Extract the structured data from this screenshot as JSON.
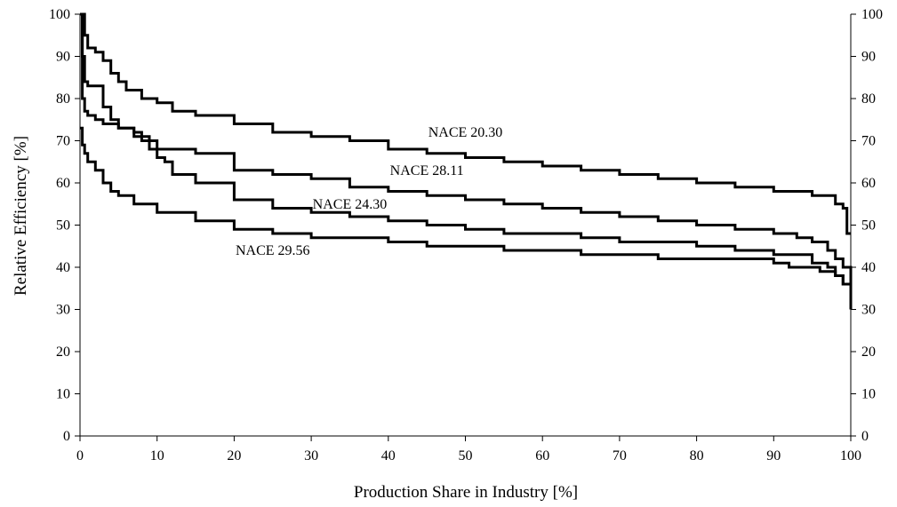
{
  "chart_data": {
    "type": "line",
    "title": "",
    "xlabel": "Production Share in Industry [%]",
    "ylabel": "Relative Efficiency [%]",
    "xlim": [
      0,
      100
    ],
    "ylim": [
      0,
      100
    ],
    "x_ticks": [
      0,
      10,
      20,
      30,
      40,
      50,
      60,
      70,
      80,
      90,
      100
    ],
    "y_ticks": [
      0,
      10,
      20,
      30,
      40,
      50,
      60,
      70,
      80,
      90,
      100
    ],
    "grid": false,
    "legend": "none",
    "series": [
      {
        "name": "NACE 20.30",
        "x": [
          0,
          0.3,
          0.6,
          1,
          2,
          3,
          4,
          5,
          6,
          8,
          10,
          12,
          15,
          20,
          25,
          30,
          35,
          40,
          45,
          50,
          55,
          60,
          65,
          70,
          75,
          80,
          85,
          90,
          95,
          98,
          99,
          99.5,
          100
        ],
        "y": [
          100,
          100,
          95,
          92,
          91,
          89,
          86,
          84,
          82,
          80,
          79,
          77,
          76,
          74,
          72,
          71,
          70,
          68,
          67,
          66,
          65,
          64,
          63,
          62,
          61,
          60,
          59,
          58,
          57,
          55,
          54,
          48,
          48
        ]
      },
      {
        "name": "NACE 28.11",
        "x": [
          0,
          0.3,
          0.6,
          1,
          2,
          3,
          4,
          5,
          7,
          8,
          10,
          15,
          20,
          25,
          30,
          35,
          40,
          45,
          50,
          55,
          60,
          65,
          70,
          75,
          80,
          85,
          90,
          93,
          95,
          97,
          98,
          99,
          100
        ],
        "y": [
          100,
          90,
          84,
          83,
          83,
          78,
          75,
          73,
          72,
          70,
          68,
          67,
          63,
          62,
          61,
          59,
          58,
          57,
          56,
          55,
          54,
          53,
          52,
          51,
          50,
          49,
          48,
          47,
          46,
          44,
          42,
          40,
          30
        ]
      },
      {
        "name": "NACE 24.30",
        "x": [
          0,
          0.3,
          0.6,
          1,
          2,
          3,
          5,
          7,
          9,
          10,
          11,
          12,
          15,
          20,
          25,
          30,
          35,
          40,
          45,
          50,
          55,
          60,
          65,
          70,
          75,
          80,
          85,
          90,
          95,
          97,
          98,
          99,
          100
        ],
        "y": [
          100,
          80,
          77,
          76,
          75,
          74,
          73,
          71,
          68,
          66,
          65,
          62,
          60,
          56,
          54,
          53,
          52,
          51,
          50,
          49,
          48,
          48,
          47,
          46,
          46,
          45,
          44,
          43,
          41,
          40,
          38,
          36,
          31
        ]
      },
      {
        "name": "NACE 29.56",
        "x": [
          0,
          0.3,
          0.6,
          1,
          2,
          3,
          4,
          5,
          7,
          10,
          15,
          20,
          25,
          30,
          35,
          40,
          45,
          50,
          55,
          60,
          65,
          70,
          75,
          80,
          85,
          90,
          92,
          94,
          96,
          98,
          99,
          100
        ],
        "y": [
          73,
          69,
          67,
          65,
          63,
          60,
          58,
          57,
          55,
          53,
          51,
          49,
          48,
          47,
          47,
          46,
          45,
          45,
          44,
          44,
          43,
          43,
          42,
          42,
          42,
          41,
          40,
          40,
          39,
          38,
          36,
          34
        ]
      }
    ],
    "annotations": [
      {
        "text": "NACE 20.30",
        "x": 50,
        "y": 72
      },
      {
        "text": "NACE 28.11",
        "x": 45,
        "y": 63
      },
      {
        "text": "NACE 24.30",
        "x": 35,
        "y": 55
      },
      {
        "text": "NACE 29.56",
        "x": 25,
        "y": 44
      }
    ]
  }
}
